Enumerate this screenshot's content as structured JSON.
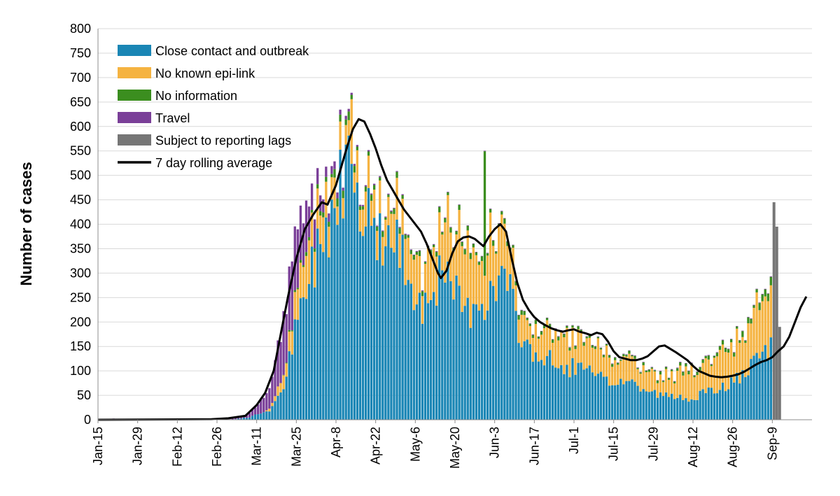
{
  "chart_data": {
    "type": "bar",
    "subtype": "stacked-bar-with-line",
    "ylabel": "Number of cases",
    "xlabel": "",
    "title": "",
    "ylim": [
      0,
      800
    ],
    "yticks": [
      0,
      50,
      100,
      150,
      200,
      250,
      300,
      350,
      400,
      450,
      500,
      550,
      600,
      650,
      700,
      750,
      800
    ],
    "grid": "horizontal",
    "legend_placement": "top-left",
    "x_start": "Jan-15",
    "x_end": "Sep-19",
    "xticks": [
      "Jan-15",
      "Jan-29",
      "Feb-12",
      "Feb-26",
      "Mar-11",
      "Mar-25",
      "Apr-8",
      "Apr-22",
      "May-6",
      "May-20",
      "Jun-3",
      "Jun-17",
      "Jul-1",
      "Jul-15",
      "Jul-29",
      "Aug-12",
      "Aug-26",
      "Sep-9"
    ],
    "colors": {
      "Close contact and outbreak": "#1a86b5",
      "No known epi-link": "#f5b341",
      "No information": "#3b8e1f",
      "Travel": "#7a3f98",
      "Subject to reporting lags": "#767676",
      "7 day rolling average": "#000000"
    },
    "legend": [
      {
        "name": "Close contact and outbreak",
        "kind": "bar"
      },
      {
        "name": "No known epi-link",
        "kind": "bar"
      },
      {
        "name": "No information",
        "kind": "bar"
      },
      {
        "name": "Travel",
        "kind": "bar"
      },
      {
        "name": "Subject to reporting lags",
        "kind": "bar"
      },
      {
        "name": "7 day rolling average",
        "kind": "line"
      }
    ],
    "keyframes": {
      "note_close": "Close contact and outbreak daily counts (interpolated between anchor days, anchor = day index from Jan-15)",
      "close": [
        [
          0,
          0
        ],
        [
          46,
          0
        ],
        [
          53,
          5
        ],
        [
          60,
          20
        ],
        [
          64,
          50
        ],
        [
          67,
          120
        ],
        [
          70,
          200
        ],
        [
          73,
          260
        ],
        [
          76,
          330
        ],
        [
          80,
          400
        ],
        [
          84,
          460
        ],
        [
          88,
          560
        ],
        [
          89,
          650
        ],
        [
          91,
          480
        ],
        [
          95,
          410
        ],
        [
          99,
          380
        ],
        [
          103,
          360
        ],
        [
          107,
          330
        ],
        [
          111,
          280
        ],
        [
          114,
          230
        ],
        [
          118,
          290
        ],
        [
          122,
          280
        ],
        [
          126,
          250
        ],
        [
          130,
          220
        ],
        [
          134,
          260
        ],
        [
          137,
          240
        ],
        [
          140,
          270
        ],
        [
          143,
          300
        ],
        [
          147,
          200
        ],
        [
          151,
          150
        ],
        [
          155,
          130
        ],
        [
          159,
          120
        ],
        [
          163,
          100
        ],
        [
          167,
          110
        ],
        [
          171,
          100
        ],
        [
          175,
          90
        ],
        [
          179,
          75
        ],
        [
          183,
          80
        ],
        [
          187,
          80
        ],
        [
          191,
          65
        ],
        [
          195,
          55
        ],
        [
          199,
          50
        ],
        [
          203,
          45
        ],
        [
          207,
          45
        ],
        [
          211,
          50
        ],
        [
          215,
          55
        ],
        [
          219,
          65
        ],
        [
          223,
          75
        ],
        [
          227,
          90
        ],
        [
          231,
          110
        ],
        [
          235,
          140
        ],
        [
          237,
          145
        ]
      ],
      "epi": [
        [
          0,
          0
        ],
        [
          58,
          0
        ],
        [
          62,
          10
        ],
        [
          66,
          30
        ],
        [
          70,
          60
        ],
        [
          76,
          80
        ],
        [
          82,
          60
        ],
        [
          88,
          40
        ],
        [
          93,
          60
        ],
        [
          100,
          60
        ],
        [
          108,
          80
        ],
        [
          114,
          80
        ],
        [
          120,
          100
        ],
        [
          126,
          120
        ],
        [
          132,
          120
        ],
        [
          138,
          110
        ],
        [
          143,
          80
        ],
        [
          147,
          60
        ],
        [
          151,
          50
        ],
        [
          155,
          60
        ],
        [
          161,
          60
        ],
        [
          167,
          60
        ],
        [
          173,
          60
        ],
        [
          179,
          55
        ],
        [
          185,
          45
        ],
        [
          191,
          40
        ],
        [
          197,
          35
        ],
        [
          203,
          45
        ],
        [
          209,
          55
        ],
        [
          215,
          60
        ],
        [
          221,
          70
        ],
        [
          227,
          80
        ],
        [
          231,
          100
        ],
        [
          235,
          130
        ],
        [
          237,
          130
        ]
      ],
      "noinfo": [
        [
          0,
          0
        ],
        [
          64,
          0
        ],
        [
          70,
          5
        ],
        [
          80,
          10
        ],
        [
          88,
          15
        ],
        [
          95,
          10
        ],
        [
          110,
          8
        ],
        [
          135,
          8
        ],
        [
          160,
          6
        ],
        [
          190,
          4
        ],
        [
          220,
          6
        ],
        [
          237,
          12
        ]
      ],
      "travel": [
        [
          0,
          0
        ],
        [
          3,
          1
        ],
        [
          5,
          2
        ],
        [
          8,
          0
        ],
        [
          40,
          0
        ],
        [
          46,
          1
        ],
        [
          50,
          3
        ],
        [
          53,
          10
        ],
        [
          56,
          20
        ],
        [
          58,
          35
        ],
        [
          61,
          60
        ],
        [
          63,
          80
        ],
        [
          65,
          110
        ],
        [
          67,
          120
        ],
        [
          69,
          140
        ],
        [
          71,
          110
        ],
        [
          73,
          90
        ],
        [
          75,
          60
        ],
        [
          77,
          40
        ],
        [
          80,
          25
        ],
        [
          84,
          10
        ],
        [
          88,
          5
        ],
        [
          92,
          3
        ],
        [
          100,
          2
        ],
        [
          130,
          1
        ],
        [
          237,
          1
        ]
      ],
      "spikes": [
        [
          89,
          95
        ],
        [
          136,
          250
        ],
        [
          113,
          20
        ],
        [
          120,
          20
        ],
        [
          177,
          15
        ]
      ],
      "lag_bars": [
        [
          238,
          445
        ],
        [
          239,
          395
        ],
        [
          240,
          190
        ]
      ]
    },
    "rolling_average": [
      [
        0,
        0
      ],
      [
        40,
        1
      ],
      [
        46,
        3
      ],
      [
        52,
        8
      ],
      [
        56,
        30
      ],
      [
        59,
        55
      ],
      [
        62,
        100
      ],
      [
        64,
        160
      ],
      [
        67,
        250
      ],
      [
        70,
        330
      ],
      [
        73,
        390
      ],
      [
        76,
        420
      ],
      [
        79,
        445
      ],
      [
        81,
        440
      ],
      [
        84,
        480
      ],
      [
        86,
        520
      ],
      [
        88,
        560
      ],
      [
        90,
        595
      ],
      [
        92,
        615
      ],
      [
        94,
        610
      ],
      [
        96,
        585
      ],
      [
        98,
        555
      ],
      [
        100,
        520
      ],
      [
        102,
        490
      ],
      [
        104,
        470
      ],
      [
        106,
        450
      ],
      [
        108,
        430
      ],
      [
        110,
        415
      ],
      [
        112,
        400
      ],
      [
        114,
        385
      ],
      [
        116,
        360
      ],
      [
        118,
        330
      ],
      [
        120,
        300
      ],
      [
        121,
        290
      ],
      [
        123,
        305
      ],
      [
        125,
        340
      ],
      [
        127,
        365
      ],
      [
        129,
        373
      ],
      [
        131,
        375
      ],
      [
        133,
        370
      ],
      [
        135,
        360
      ],
      [
        136,
        355
      ],
      [
        138,
        375
      ],
      [
        140,
        390
      ],
      [
        142,
        400
      ],
      [
        144,
        385
      ],
      [
        146,
        330
      ],
      [
        148,
        280
      ],
      [
        150,
        245
      ],
      [
        152,
        225
      ],
      [
        154,
        210
      ],
      [
        156,
        200
      ],
      [
        158,
        193
      ],
      [
        160,
        187
      ],
      [
        162,
        183
      ],
      [
        164,
        180
      ],
      [
        166,
        183
      ],
      [
        168,
        185
      ],
      [
        170,
        180
      ],
      [
        172,
        177
      ],
      [
        174,
        173
      ],
      [
        176,
        178
      ],
      [
        178,
        175
      ],
      [
        180,
        160
      ],
      [
        182,
        140
      ],
      [
        184,
        128
      ],
      [
        186,
        125
      ],
      [
        188,
        122
      ],
      [
        190,
        122
      ],
      [
        192,
        125
      ],
      [
        194,
        130
      ],
      [
        196,
        140
      ],
      [
        198,
        150
      ],
      [
        200,
        152
      ],
      [
        202,
        145
      ],
      [
        204,
        138
      ],
      [
        206,
        130
      ],
      [
        208,
        122
      ],
      [
        210,
        110
      ],
      [
        212,
        100
      ],
      [
        214,
        95
      ],
      [
        216,
        90
      ],
      [
        218,
        88
      ],
      [
        220,
        87
      ],
      [
        222,
        88
      ],
      [
        224,
        90
      ],
      [
        226,
        93
      ],
      [
        228,
        98
      ],
      [
        230,
        105
      ],
      [
        232,
        112
      ],
      [
        234,
        118
      ],
      [
        236,
        122
      ],
      [
        238,
        128
      ],
      [
        240,
        140
      ],
      [
        242,
        150
      ],
      [
        244,
        170
      ],
      [
        246,
        200
      ],
      [
        248,
        230
      ],
      [
        250,
        252
      ]
    ]
  }
}
